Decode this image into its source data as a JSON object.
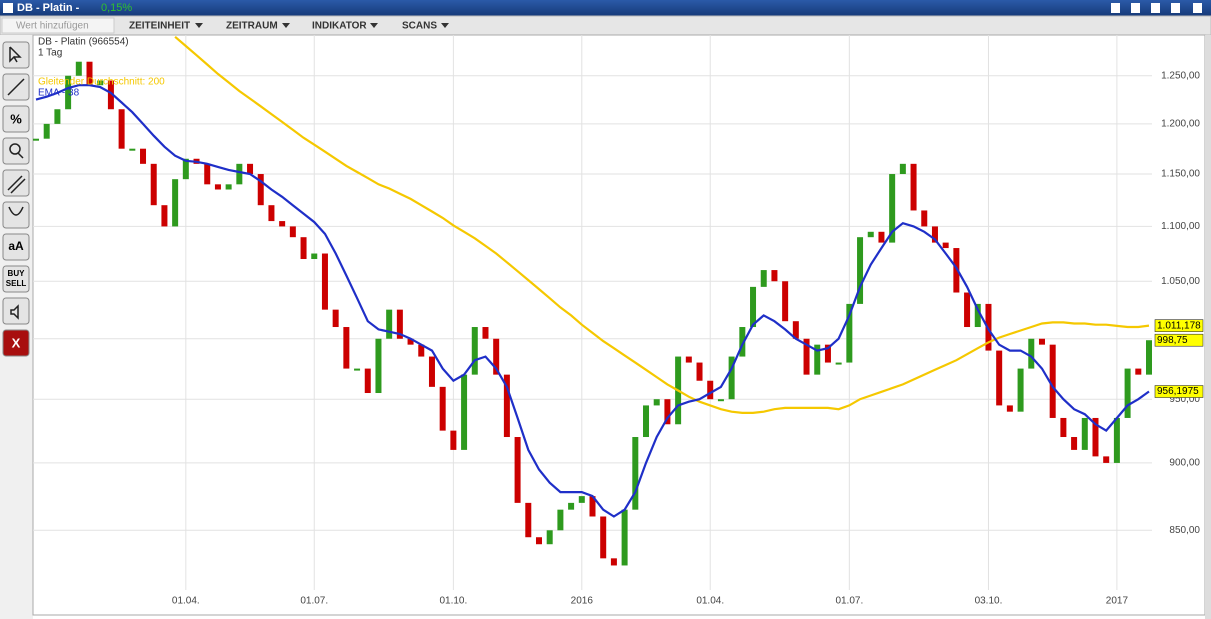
{
  "header": {
    "title": "DB - Platin -",
    "change": "0,15%"
  },
  "toolbar": {
    "search_placeholder": "Wert hinzufügen",
    "menus": [
      "ZEITEINHEIT",
      "ZEITRAUM",
      "INDIKATOR",
      "SCANS"
    ]
  },
  "tools": {
    "percent": "%",
    "text": "aA",
    "buy": "BUY",
    "sell": "SELL",
    "close": "X"
  },
  "chart_data": {
    "type": "candle-line",
    "instrument": "DB - Platin (966554)",
    "interval": "1 Tag",
    "log_y": true,
    "grid": true,
    "ylim": [
      808,
      1294
    ],
    "yticks": [
      {
        "value": 850,
        "label": "850,00"
      },
      {
        "value": 900,
        "label": "900,00"
      },
      {
        "value": 950,
        "label": "950,00"
      },
      {
        "value": 1000,
        "label": "1.000,00"
      },
      {
        "value": 1050,
        "label": "1.050,00"
      },
      {
        "value": 1100,
        "label": "1.100,00"
      },
      {
        "value": 1150,
        "label": "1.150,00"
      },
      {
        "value": 1200,
        "label": "1.200,00"
      },
      {
        "value": 1250,
        "label": "1.250,00"
      }
    ],
    "categories": [
      null,
      null,
      null,
      null,
      null,
      null,
      null,
      null,
      null,
      null,
      null,
      null,
      null,
      null,
      "01.04.",
      null,
      null,
      null,
      null,
      null,
      null,
      null,
      null,
      null,
      null,
      null,
      "01.07.",
      null,
      null,
      null,
      null,
      null,
      null,
      null,
      null,
      null,
      null,
      null,
      null,
      "01.10.",
      null,
      null,
      null,
      null,
      null,
      null,
      null,
      null,
      null,
      null,
      null,
      "2016",
      null,
      null,
      null,
      null,
      null,
      null,
      null,
      null,
      null,
      null,
      null,
      "01.04.",
      null,
      null,
      null,
      null,
      null,
      null,
      null,
      null,
      null,
      null,
      null,
      null,
      "01.07.",
      null,
      null,
      null,
      null,
      null,
      null,
      null,
      null,
      null,
      null,
      null,
      null,
      "03.10.",
      null,
      null,
      null,
      null,
      null,
      null,
      null,
      null,
      null,
      null,
      null,
      "2017",
      null,
      null,
      null
    ],
    "series": [
      {
        "name": "DB - Platin (966554)",
        "kind": "candle",
        "up_color": "#2e9a1e",
        "down_color": "#cc0000",
        "last_label": "998,75",
        "values": [
          1185,
          1200,
          1215,
          1250,
          1265,
          1240,
          1245,
          1215,
          1175,
          1175,
          1160,
          1120,
          1100,
          1145,
          1165,
          1160,
          1140,
          1135,
          1140,
          1160,
          1150,
          1120,
          1105,
          1100,
          1090,
          1070,
          1075,
          1025,
          1010,
          975,
          975,
          955,
          1000,
          1025,
          1000,
          995,
          985,
          960,
          925,
          910,
          970,
          1010,
          1000,
          970,
          920,
          870,
          845,
          840,
          850,
          865,
          870,
          875,
          860,
          830,
          825,
          865,
          920,
          945,
          950,
          930,
          985,
          980,
          965,
          950,
          950,
          985,
          1010,
          1045,
          1060,
          1050,
          1015,
          1000,
          970,
          995,
          980,
          980,
          1030,
          1090,
          1095,
          1085,
          1150,
          1160,
          1115,
          1100,
          1085,
          1080,
          1040,
          1010,
          1030,
          990,
          945,
          940,
          975,
          1000,
          995,
          935,
          920,
          910,
          935,
          905,
          900,
          935,
          975,
          970,
          998.75
        ]
      },
      {
        "name": "Gleitender Durchschnitt: 200",
        "kind": "line",
        "color": "#f5c800",
        "last_label": "1.011,178",
        "values": [
          null,
          null,
          null,
          null,
          null,
          null,
          null,
          null,
          null,
          null,
          null,
          null,
          null,
          1292,
          1282,
          1272,
          1262,
          1252,
          1243,
          1234,
          1226,
          1218,
          1210,
          1202,
          1194,
          1186,
          1179,
          1172,
          1165,
          1158,
          1152,
          1146,
          1140,
          1136,
          1131,
          1126,
          1120,
          1114,
          1108,
          1101,
          1095,
          1089,
          1082,
          1075,
          1067,
          1059,
          1051,
          1043,
          1035,
          1027,
          1020,
          1012,
          1005,
          998,
          992,
          986,
          980,
          974,
          968,
          962,
          957,
          952,
          948,
          945,
          942,
          940,
          939,
          939,
          940,
          942,
          943,
          943,
          943,
          943,
          943,
          942,
          945,
          950,
          953,
          956,
          959,
          962,
          966,
          970,
          974,
          978,
          982,
          987,
          992,
          997,
          1001,
          1004,
          1007,
          1010,
          1013,
          1014,
          1014,
          1013,
          1013,
          1012,
          1012,
          1011,
          1010,
          1010,
          1011.178
        ]
      },
      {
        "name": "EMA - 38",
        "kind": "line",
        "color": "#1f2fc8",
        "last_label": "956,1975",
        "values": [
          1225,
          1228,
          1232,
          1237,
          1240,
          1240,
          1238,
          1232,
          1222,
          1212,
          1200,
          1188,
          1177,
          1168,
          1163,
          1162,
          1160,
          1157,
          1154,
          1152,
          1150,
          1143,
          1135,
          1128,
          1120,
          1112,
          1104,
          1093,
          1075,
          1055,
          1035,
          1015,
          1008,
          1006,
          1004,
          1000,
          995,
          990,
          975,
          965,
          970,
          982,
          985,
          975,
          960,
          935,
          910,
          895,
          885,
          878,
          878,
          878,
          875,
          865,
          860,
          865,
          878,
          900,
          920,
          935,
          945,
          948,
          950,
          955,
          960,
          975,
          995,
          1012,
          1020,
          1015,
          1008,
          1000,
          995,
          990,
          992,
          1000,
          1020,
          1045,
          1065,
          1080,
          1095,
          1103,
          1100,
          1095,
          1088,
          1075,
          1062,
          1045,
          1025,
          1008,
          995,
          990,
          990,
          985,
          975,
          960,
          950,
          942,
          938,
          930,
          925,
          935,
          945,
          950,
          956.1975
        ]
      }
    ]
  }
}
